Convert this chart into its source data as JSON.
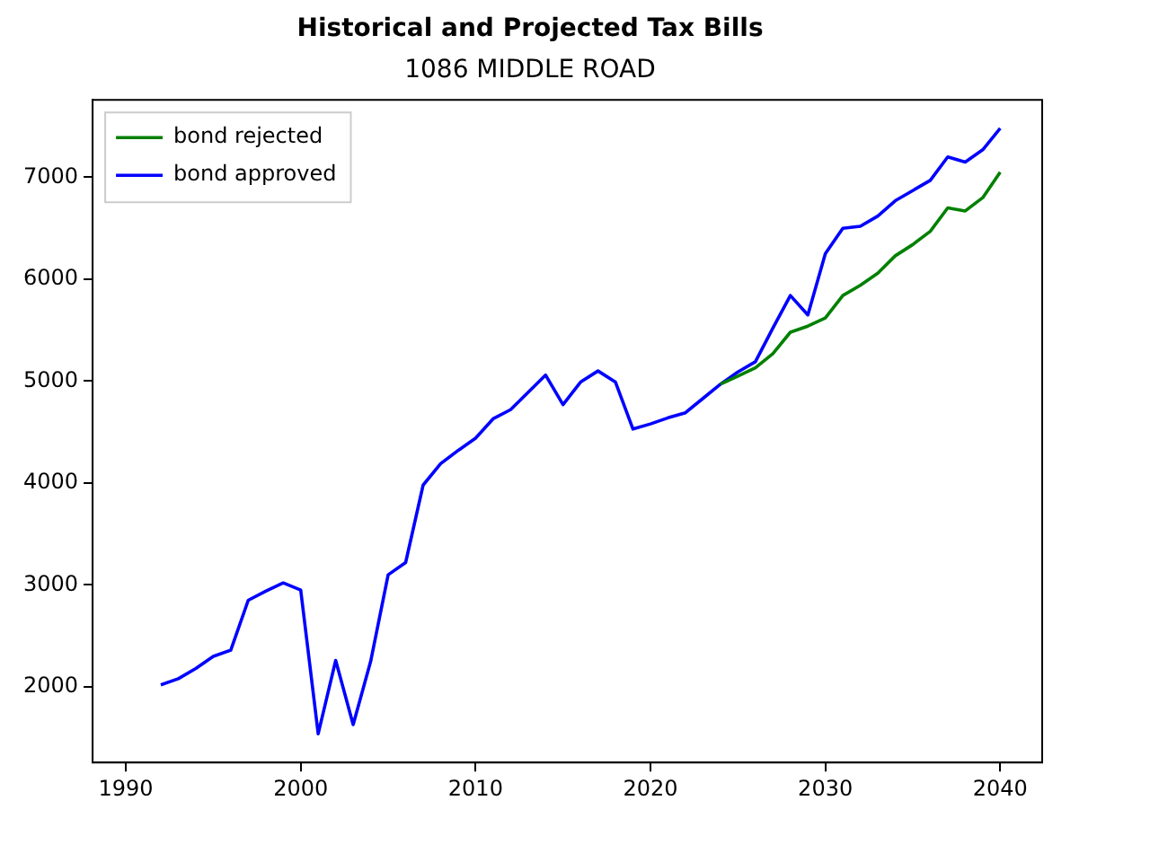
{
  "chart_data": {
    "type": "line",
    "title": "Historical and Projected Tax Bills",
    "subtitle": "1086 MIDDLE ROAD",
    "x": [
      1992,
      1993,
      1994,
      1995,
      1996,
      1997,
      1998,
      1999,
      2000,
      2001,
      2002,
      2003,
      2004,
      2005,
      2006,
      2007,
      2008,
      2009,
      2010,
      2011,
      2012,
      2013,
      2014,
      2015,
      2016,
      2017,
      2018,
      2019,
      2020,
      2021,
      2022,
      2023,
      2024,
      2025,
      2026,
      2027,
      2028,
      2029,
      2030,
      2031,
      2032,
      2033,
      2034,
      2035,
      2036,
      2037,
      2038,
      2039,
      2040
    ],
    "series": [
      {
        "name": "bond rejected",
        "color": "#008000",
        "values": [
          null,
          null,
          null,
          null,
          null,
          null,
          null,
          null,
          null,
          null,
          null,
          null,
          null,
          null,
          null,
          null,
          null,
          null,
          null,
          null,
          null,
          null,
          null,
          null,
          null,
          null,
          null,
          null,
          null,
          null,
          null,
          null,
          4970,
          5050,
          5130,
          5270,
          5480,
          5540,
          5620,
          5840,
          5940,
          6060,
          6230,
          6340,
          6470,
          6700,
          6670,
          6800,
          7050
        ]
      },
      {
        "name": "bond approved",
        "color": "#0000ff",
        "values": [
          2020,
          2080,
          2180,
          2300,
          2360,
          2850,
          2940,
          3020,
          2950,
          1540,
          2260,
          1630,
          2250,
          3100,
          3220,
          3980,
          4190,
          4320,
          4440,
          4630,
          4720,
          4890,
          5060,
          4770,
          4990,
          5100,
          4990,
          4530,
          4580,
          4640,
          4690,
          4830,
          4970,
          5090,
          5190,
          5520,
          5840,
          5650,
          6250,
          6500,
          6520,
          6620,
          6770,
          6870,
          6970,
          7200,
          7150,
          7270,
          7480
        ]
      }
    ],
    "xlim": [
      1988.1,
      2042.4
    ],
    "xticks": [
      1990,
      2000,
      2010,
      2020,
      2030,
      2040
    ],
    "ylim": [
      1258,
      7760
    ],
    "yticks": [
      2000,
      3000,
      4000,
      5000,
      6000,
      7000
    ],
    "grid": false,
    "legend": "top left",
    "marker": "none",
    "line_style": "solid"
  }
}
